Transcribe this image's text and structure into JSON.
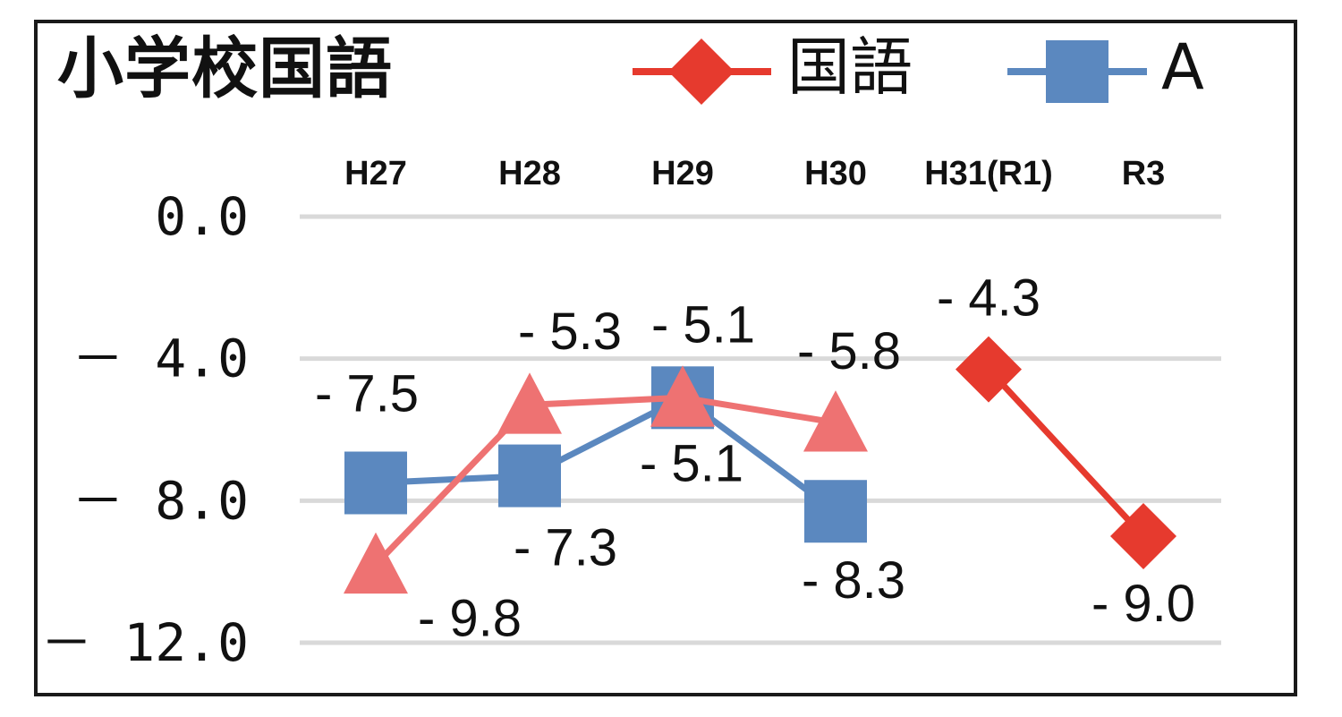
{
  "chart_data": {
    "type": "line",
    "title": "小学校国語",
    "categories": [
      "H27",
      "H28",
      "H29",
      "H30",
      "H31(R1)",
      "R3"
    ],
    "ylim": [
      -12,
      0
    ],
    "y_ticks": [
      0,
      -4,
      -8,
      -12
    ],
    "y_tick_labels": [
      "0.0",
      "－ 4.0",
      "－ 8.0",
      "－ 12.0"
    ],
    "grid": true,
    "legend_position": "top-right",
    "series": [
      {
        "name": "国語",
        "color": "#e63a2e",
        "marker": "diamond",
        "values": [
          null,
          null,
          null,
          null,
          -4.3,
          -9.0
        ],
        "labels": [
          null,
          null,
          null,
          null,
          "- 4.3",
          "- 9.0"
        ]
      },
      {
        "name": "A",
        "color": "#5b88bf",
        "marker": "square",
        "values": [
          -7.5,
          -7.3,
          -5.1,
          -8.3,
          null,
          null
        ],
        "labels": [
          "- 7.5",
          "- 7.3",
          "- 5.1",
          "- 8.3",
          null,
          null
        ]
      },
      {
        "color": "#ee7272",
        "marker": "triangle",
        "values": [
          -9.8,
          -5.3,
          -5.1,
          -5.8,
          null,
          null
        ],
        "labels": [
          "- 9.8",
          "- 5.3",
          "- 5.1",
          "- 5.8",
          null,
          null
        ]
      }
    ]
  }
}
